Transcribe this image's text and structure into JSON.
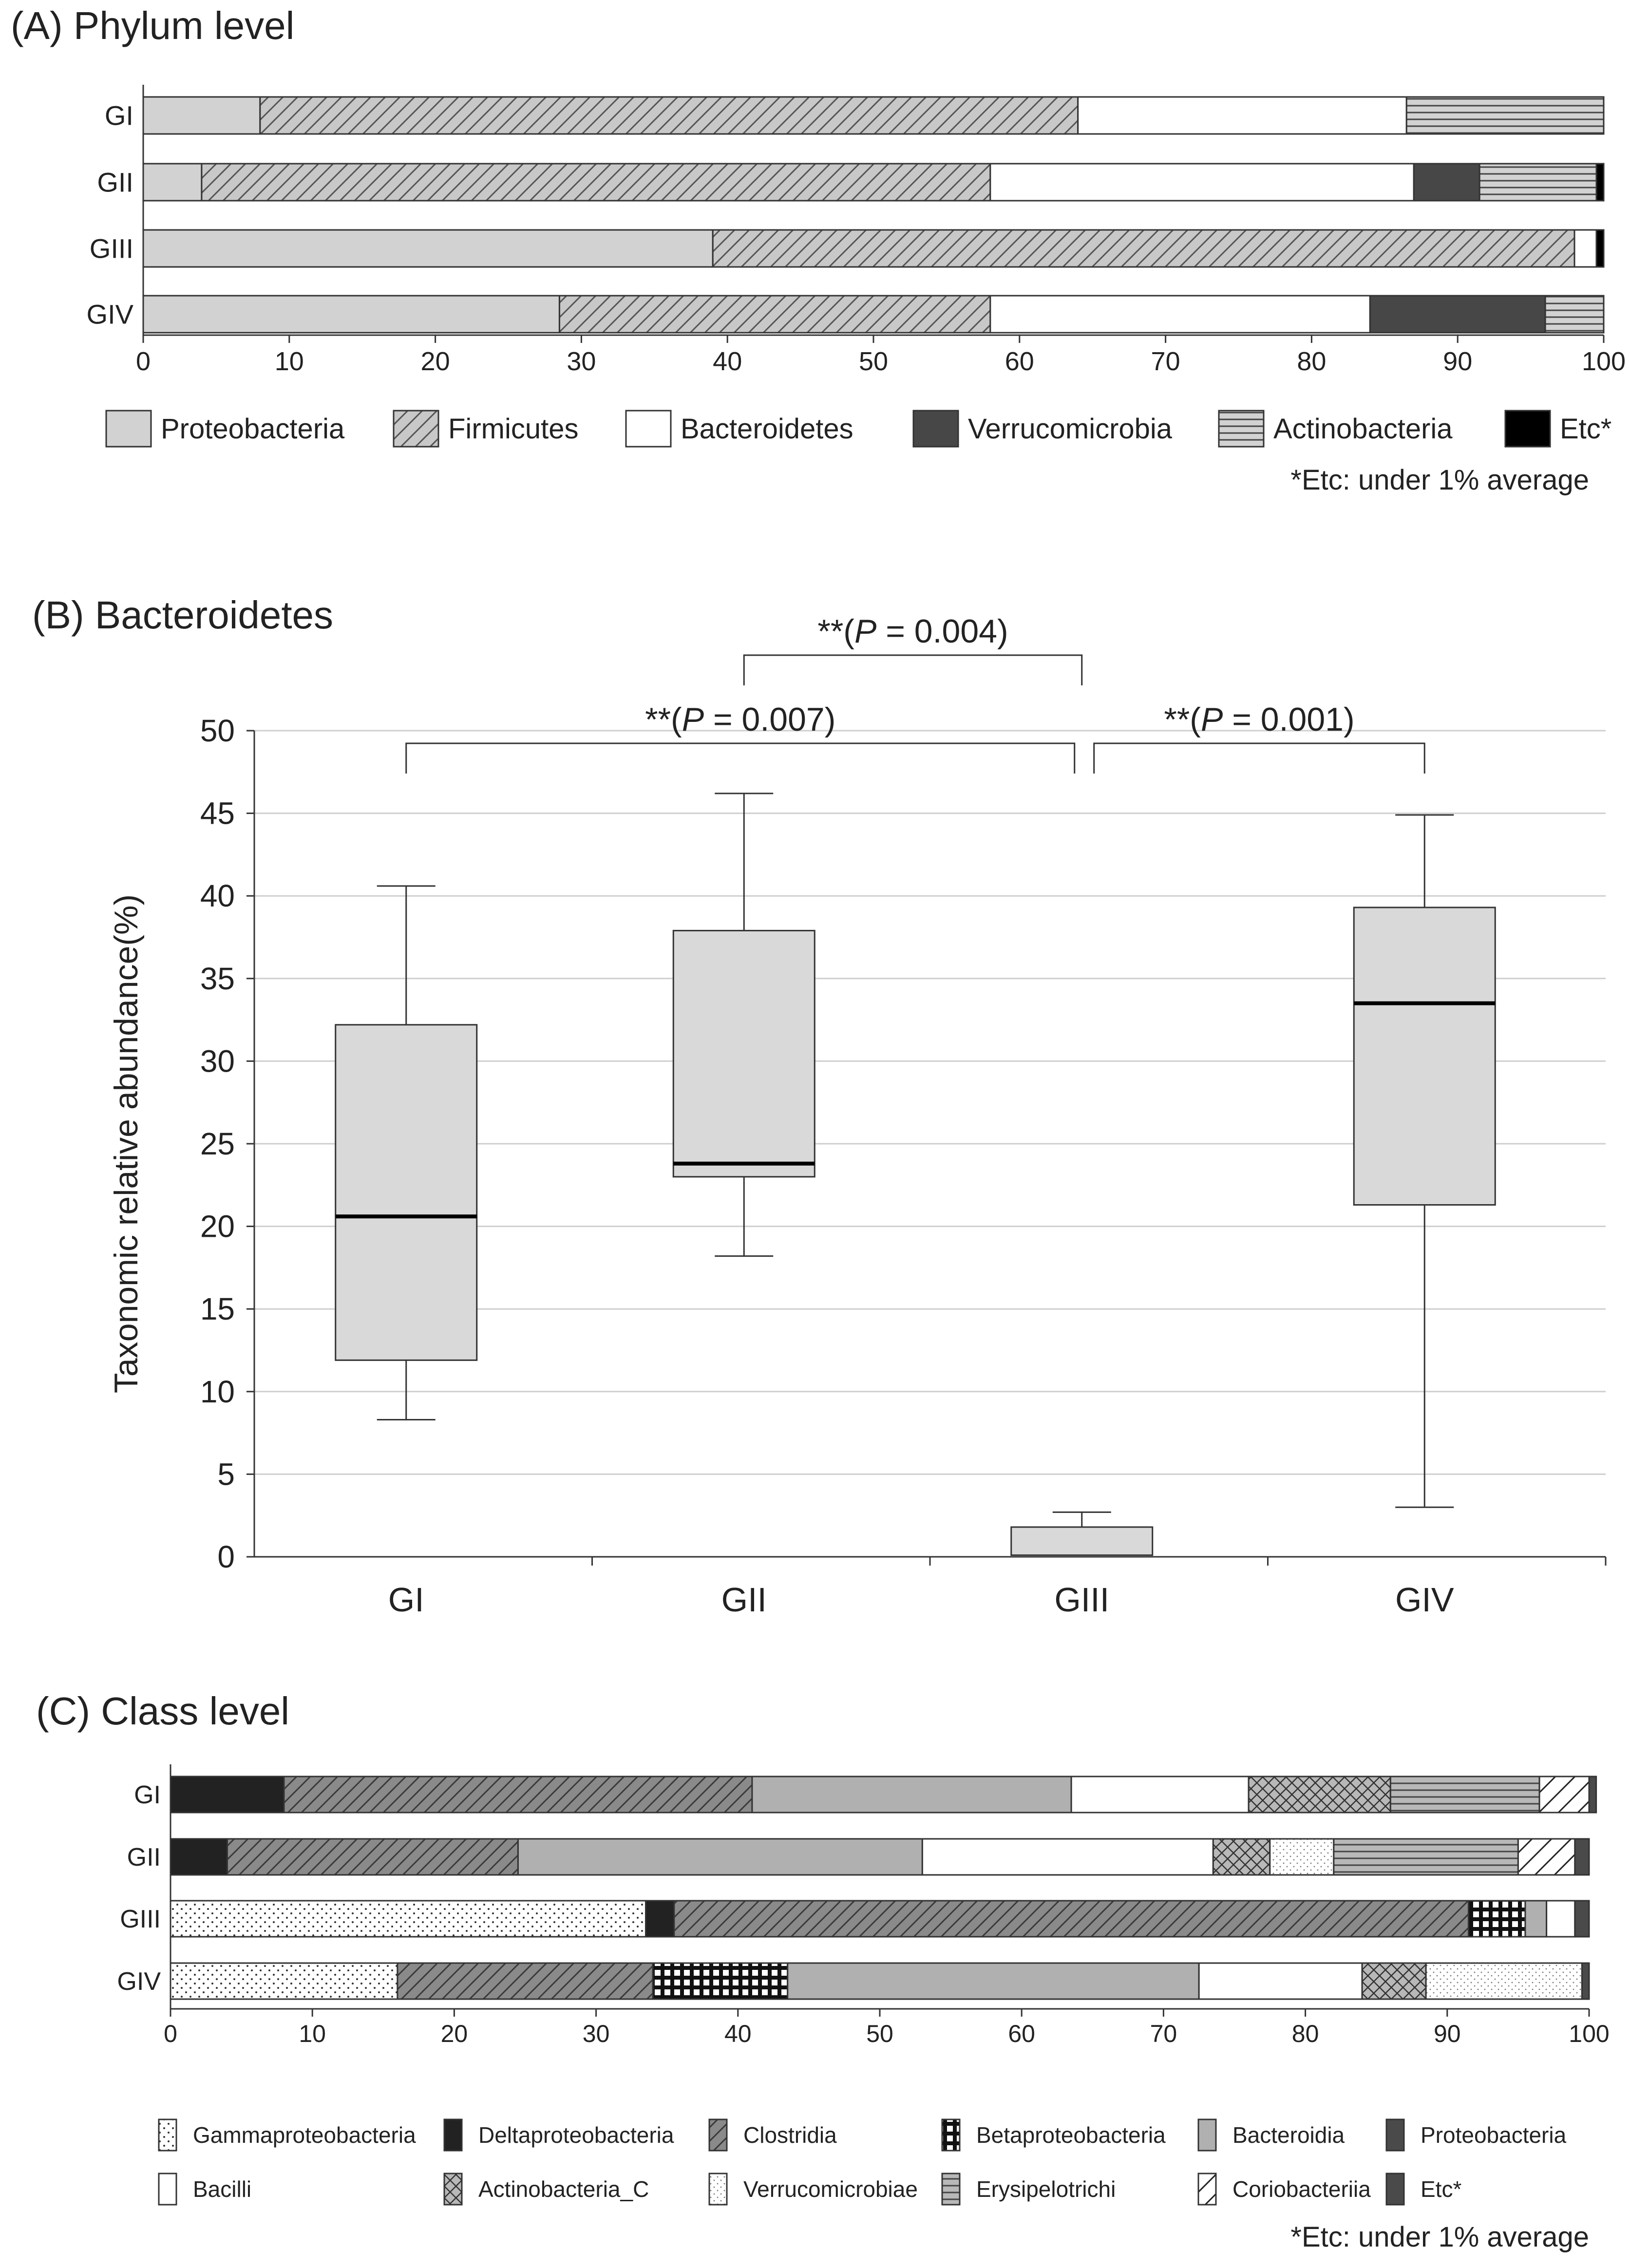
{
  "panels": {
    "a_title": "(A) Phylum level",
    "b_title": "(B) Bacteroidetes",
    "c_title": "(C) Class level"
  },
  "footnotes": {
    "a": "*Etc: under 1% average",
    "c": "*Etc: under 1% average"
  },
  "chart_data": [
    {
      "id": "phylum",
      "type": "bar",
      "orientation": "horizontal",
      "stacked": true,
      "title": "(A) Phylum level",
      "categories": [
        "GI",
        "GII",
        "GIII",
        "GIV"
      ],
      "xlim": [
        0,
        100
      ],
      "xticks": [
        0,
        10,
        20,
        30,
        40,
        50,
        60,
        70,
        80,
        90,
        100
      ],
      "legend_position": "bottom",
      "footnote": "*Etc: under 1% average",
      "series": [
        {
          "name": "Proteobacteria",
          "fill": "#d2d2d2",
          "pattern": "solid",
          "values": [
            8,
            4,
            39,
            28.5
          ]
        },
        {
          "name": "Firmicutes",
          "fill": "#c8c8c8",
          "pattern": "diag",
          "values": [
            56,
            54,
            59,
            29.5
          ]
        },
        {
          "name": "Bacteroidetes",
          "fill": "#ffffff",
          "pattern": "solid",
          "values": [
            22.5,
            29,
            1.5,
            26
          ]
        },
        {
          "name": "Verrucomicrobia",
          "fill": "#474747",
          "pattern": "solid",
          "values": [
            0,
            4.5,
            0,
            12
          ]
        },
        {
          "name": "Actinobacteria",
          "fill": "#d2d2d2",
          "pattern": "hlines",
          "values": [
            13.5,
            8,
            0,
            4
          ]
        },
        {
          "name": "Etc*",
          "fill": "#000000",
          "pattern": "solid",
          "values": [
            0,
            0.5,
            0.5,
            0
          ]
        }
      ]
    },
    {
      "id": "bacteroidetes",
      "type": "box",
      "title": "(B) Bacteroidetes",
      "ylabel": "Taxonomic relative abundance(%)",
      "ylim": [
        0,
        50
      ],
      "yticks": [
        0,
        5,
        10,
        15,
        20,
        25,
        30,
        35,
        40,
        45,
        50
      ],
      "grid": true,
      "categories": [
        "GI",
        "GII",
        "GIII",
        "GIV"
      ],
      "boxes": [
        {
          "group": "GI",
          "min": 8.3,
          "q1": 11.9,
          "median": 20.6,
          "q3": 32.2,
          "max": 40.6
        },
        {
          "group": "GII",
          "min": 18.2,
          "q1": 23.0,
          "median": 23.8,
          "q3": 37.9,
          "max": 46.2
        },
        {
          "group": "GIII",
          "min": 0.1,
          "q1": 0.1,
          "median": 0.1,
          "q3": 1.8,
          "max": 2.7
        },
        {
          "group": "GIV",
          "min": 3.0,
          "q1": 21.3,
          "median": 33.5,
          "q3": 39.3,
          "max": 44.9
        }
      ],
      "comparisons": [
        {
          "from": "GII",
          "to": "GIII",
          "stars": "**(",
          "p_symbol": "P",
          "p_text": " = 0.004)"
        },
        {
          "from": "GI",
          "to": "GIII",
          "stars": "**(",
          "p_symbol": "P",
          "p_text": " = 0.007)"
        },
        {
          "from": "GIII",
          "to": "GIV",
          "stars": "**(",
          "p_symbol": "P",
          "p_text": " = 0.001)"
        }
      ]
    },
    {
      "id": "class",
      "type": "bar",
      "orientation": "horizontal",
      "stacked": true,
      "title": "(C) Class level",
      "categories": [
        "GI",
        "GII",
        "GIII",
        "GIV"
      ],
      "xlim": [
        0,
        100
      ],
      "xticks": [
        0,
        10,
        20,
        30,
        40,
        50,
        60,
        70,
        80,
        90,
        100
      ],
      "legend_position": "bottom",
      "footnote": "*Etc: under 1% average",
      "series": [
        {
          "name": "Gammaproteobacteria",
          "fill": "#ffffff",
          "pattern": "dots",
          "values": [
            0,
            0,
            33.5,
            16
          ]
        },
        {
          "name": "Deltaproteobacteria",
          "fill": "#222222",
          "pattern": "solid",
          "values": [
            8,
            4,
            2,
            0
          ]
        },
        {
          "name": "Clostridia",
          "fill": "#8a8a8a",
          "pattern": "diag",
          "values": [
            33,
            20.5,
            56,
            18
          ]
        },
        {
          "name": "Betaproteobacteria",
          "fill": "#ffffff",
          "pattern": "grid",
          "values": [
            0,
            0,
            4,
            9.5
          ]
        },
        {
          "name": "Bacteroidia",
          "fill": "#b0b0b0",
          "pattern": "solid",
          "values": [
            22.5,
            28.5,
            1.5,
            29
          ]
        },
        {
          "name": "Proteobacteria",
          "fill": "#4a4a4a",
          "pattern": "solid",
          "values": [
            0,
            0,
            0,
            0
          ]
        },
        {
          "name": "Bacilli",
          "fill": "#ffffff",
          "pattern": "solid",
          "values": [
            12.5,
            20.5,
            2,
            11.5
          ]
        },
        {
          "name": "Actinobacteria_C",
          "fill": "#b8b8b8",
          "pattern": "cross",
          "values": [
            10,
            4,
            0,
            4.5
          ]
        },
        {
          "name": "Verrucomicrobiae",
          "fill": "#ffffff",
          "pattern": "fine_dots",
          "values": [
            0,
            4.5,
            0,
            11
          ]
        },
        {
          "name": "Erysipelotrichi",
          "fill": "#b8b8b8",
          "pattern": "hlines",
          "values": [
            10.5,
            13,
            0,
            0
          ]
        },
        {
          "name": "Coriobacteriia",
          "fill": "#ffffff",
          "pattern": "diag_sparse",
          "values": [
            3.5,
            4,
            0,
            0
          ]
        },
        {
          "name": "Etc*",
          "fill": "#4a4a4a",
          "pattern": "solid",
          "values": [
            0.5,
            1,
            1,
            0.5
          ]
        }
      ]
    }
  ]
}
